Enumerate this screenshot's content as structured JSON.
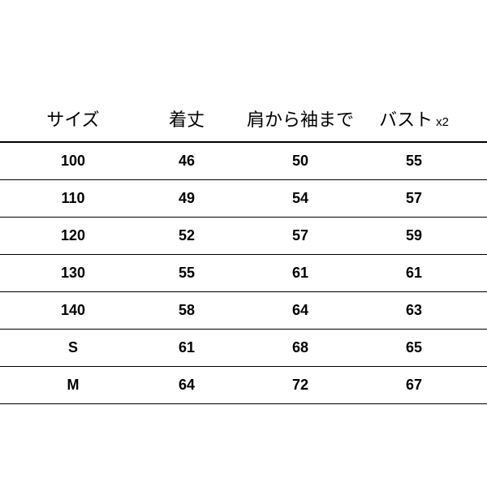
{
  "table": {
    "type": "table",
    "background_color": "#ffffff",
    "text_color": "#000000",
    "divider_color": "#000000",
    "header_fontsize": 22,
    "header_fontweight": 400,
    "data_fontsize": 18,
    "data_fontweight": 700,
    "columns": [
      {
        "label": "サイズ",
        "sub": ""
      },
      {
        "label": "着丈",
        "sub": ""
      },
      {
        "label": "肩から袖まで",
        "sub": ""
      },
      {
        "label": "バスト",
        "sub": "x2"
      }
    ],
    "rows": [
      [
        "100",
        "46",
        "50",
        "55"
      ],
      [
        "110",
        "49",
        "54",
        "57"
      ],
      [
        "120",
        "52",
        "57",
        "59"
      ],
      [
        "130",
        "55",
        "61",
        "61"
      ],
      [
        "140",
        "58",
        "64",
        "63"
      ],
      [
        "S",
        "61",
        "68",
        "65"
      ],
      [
        "M",
        "64",
        "72",
        "67"
      ]
    ]
  }
}
